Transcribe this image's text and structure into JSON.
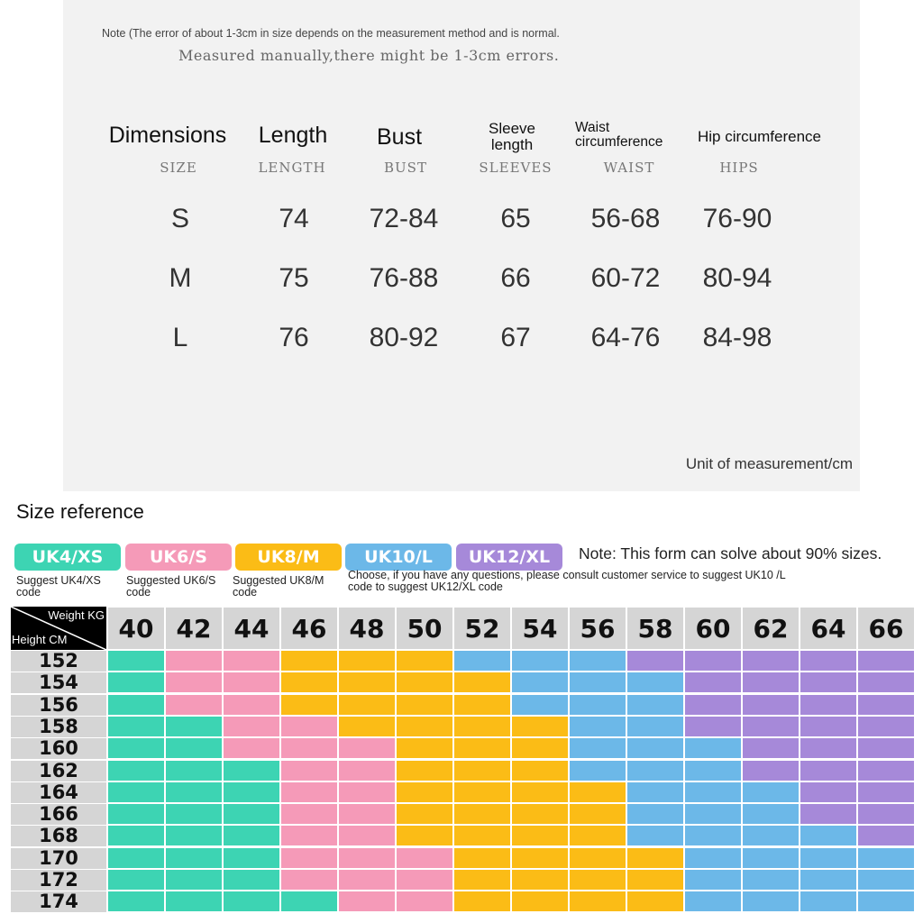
{
  "notes": {
    "note1": "Note (The error of about 1-3cm in size depends on the measurement method and is normal.",
    "note2": "Measured manually,there might be 1-3cm errors.",
    "unit": "Unit of measurement/cm"
  },
  "measure_table": {
    "headers": [
      {
        "main": "Dimensions",
        "sub": "SIZE"
      },
      {
        "main": "Length",
        "sub": "LENGTH"
      },
      {
        "main": "Bust",
        "sub": "BUST"
      },
      {
        "main": "Sleeve length",
        "sub": "SLEEVES"
      },
      {
        "main": "Waist circumference",
        "sub": "WAIST"
      },
      {
        "main": "Hip circumference",
        "sub": "HIPS"
      }
    ],
    "rows": [
      [
        "S",
        "74",
        "72-84",
        "65",
        "56-68",
        "76-90"
      ],
      [
        "M",
        "75",
        "76-88",
        "66",
        "60-72",
        "80-94"
      ],
      [
        "L",
        "76",
        "80-92",
        "67",
        "64-76",
        "84-98"
      ]
    ]
  },
  "size_reference": {
    "title": "Size reference",
    "note": "Note: This form can solve about 90% sizes.",
    "legend": [
      {
        "label": "UK4/XS",
        "color": "#3dd4b3",
        "caption": "Suggest UK4/XS code"
      },
      {
        "label": "UK6/S",
        "color": "#f59ab8",
        "caption": "Suggested UK6/S code"
      },
      {
        "label": "UK8/M",
        "color": "#fbbc16",
        "caption": "Suggested UK8/M code"
      },
      {
        "label": "UK10/L",
        "color": "#6cb8e8",
        "caption": "Choose, if you have any questions, please consult customer service to suggest UK10 /L code to suggest UK12/XL code"
      },
      {
        "label": "UK12/XL",
        "color": "#a689d9",
        "caption": ""
      }
    ],
    "corner": {
      "weight": "Weight KG",
      "height": "Height CM"
    },
    "weights": [
      "40",
      "42",
      "44",
      "46",
      "48",
      "50",
      "52",
      "54",
      "56",
      "58",
      "60",
      "62",
      "64",
      "66"
    ],
    "heights": [
      "152",
      "154",
      "156",
      "158",
      "160",
      "162",
      "164",
      "166",
      "168",
      "170",
      "172",
      "174"
    ],
    "grid": [
      [
        0,
        1,
        1,
        2,
        2,
        2,
        3,
        3,
        3,
        4,
        4,
        4,
        4,
        4
      ],
      [
        0,
        1,
        1,
        2,
        2,
        2,
        2,
        3,
        3,
        3,
        4,
        4,
        4,
        4
      ],
      [
        0,
        1,
        1,
        2,
        2,
        2,
        2,
        3,
        3,
        3,
        4,
        4,
        4,
        4
      ],
      [
        0,
        0,
        1,
        1,
        2,
        2,
        2,
        2,
        3,
        3,
        4,
        4,
        4,
        4
      ],
      [
        0,
        0,
        1,
        1,
        1,
        2,
        2,
        2,
        3,
        3,
        3,
        4,
        4,
        4
      ],
      [
        0,
        0,
        0,
        1,
        1,
        2,
        2,
        2,
        3,
        3,
        3,
        4,
        4,
        4
      ],
      [
        0,
        0,
        0,
        1,
        1,
        2,
        2,
        2,
        2,
        3,
        3,
        3,
        4,
        4
      ],
      [
        0,
        0,
        0,
        1,
        1,
        2,
        2,
        2,
        2,
        3,
        3,
        3,
        4,
        4
      ],
      [
        0,
        0,
        0,
        1,
        1,
        2,
        2,
        2,
        2,
        3,
        3,
        3,
        3,
        4
      ],
      [
        0,
        0,
        0,
        1,
        1,
        1,
        2,
        2,
        2,
        2,
        3,
        3,
        3,
        3
      ],
      [
        0,
        0,
        0,
        1,
        1,
        1,
        2,
        2,
        2,
        2,
        3,
        3,
        3,
        3
      ],
      [
        0,
        0,
        0,
        0,
        1,
        1,
        2,
        2,
        2,
        2,
        3,
        3,
        3,
        3
      ]
    ]
  }
}
